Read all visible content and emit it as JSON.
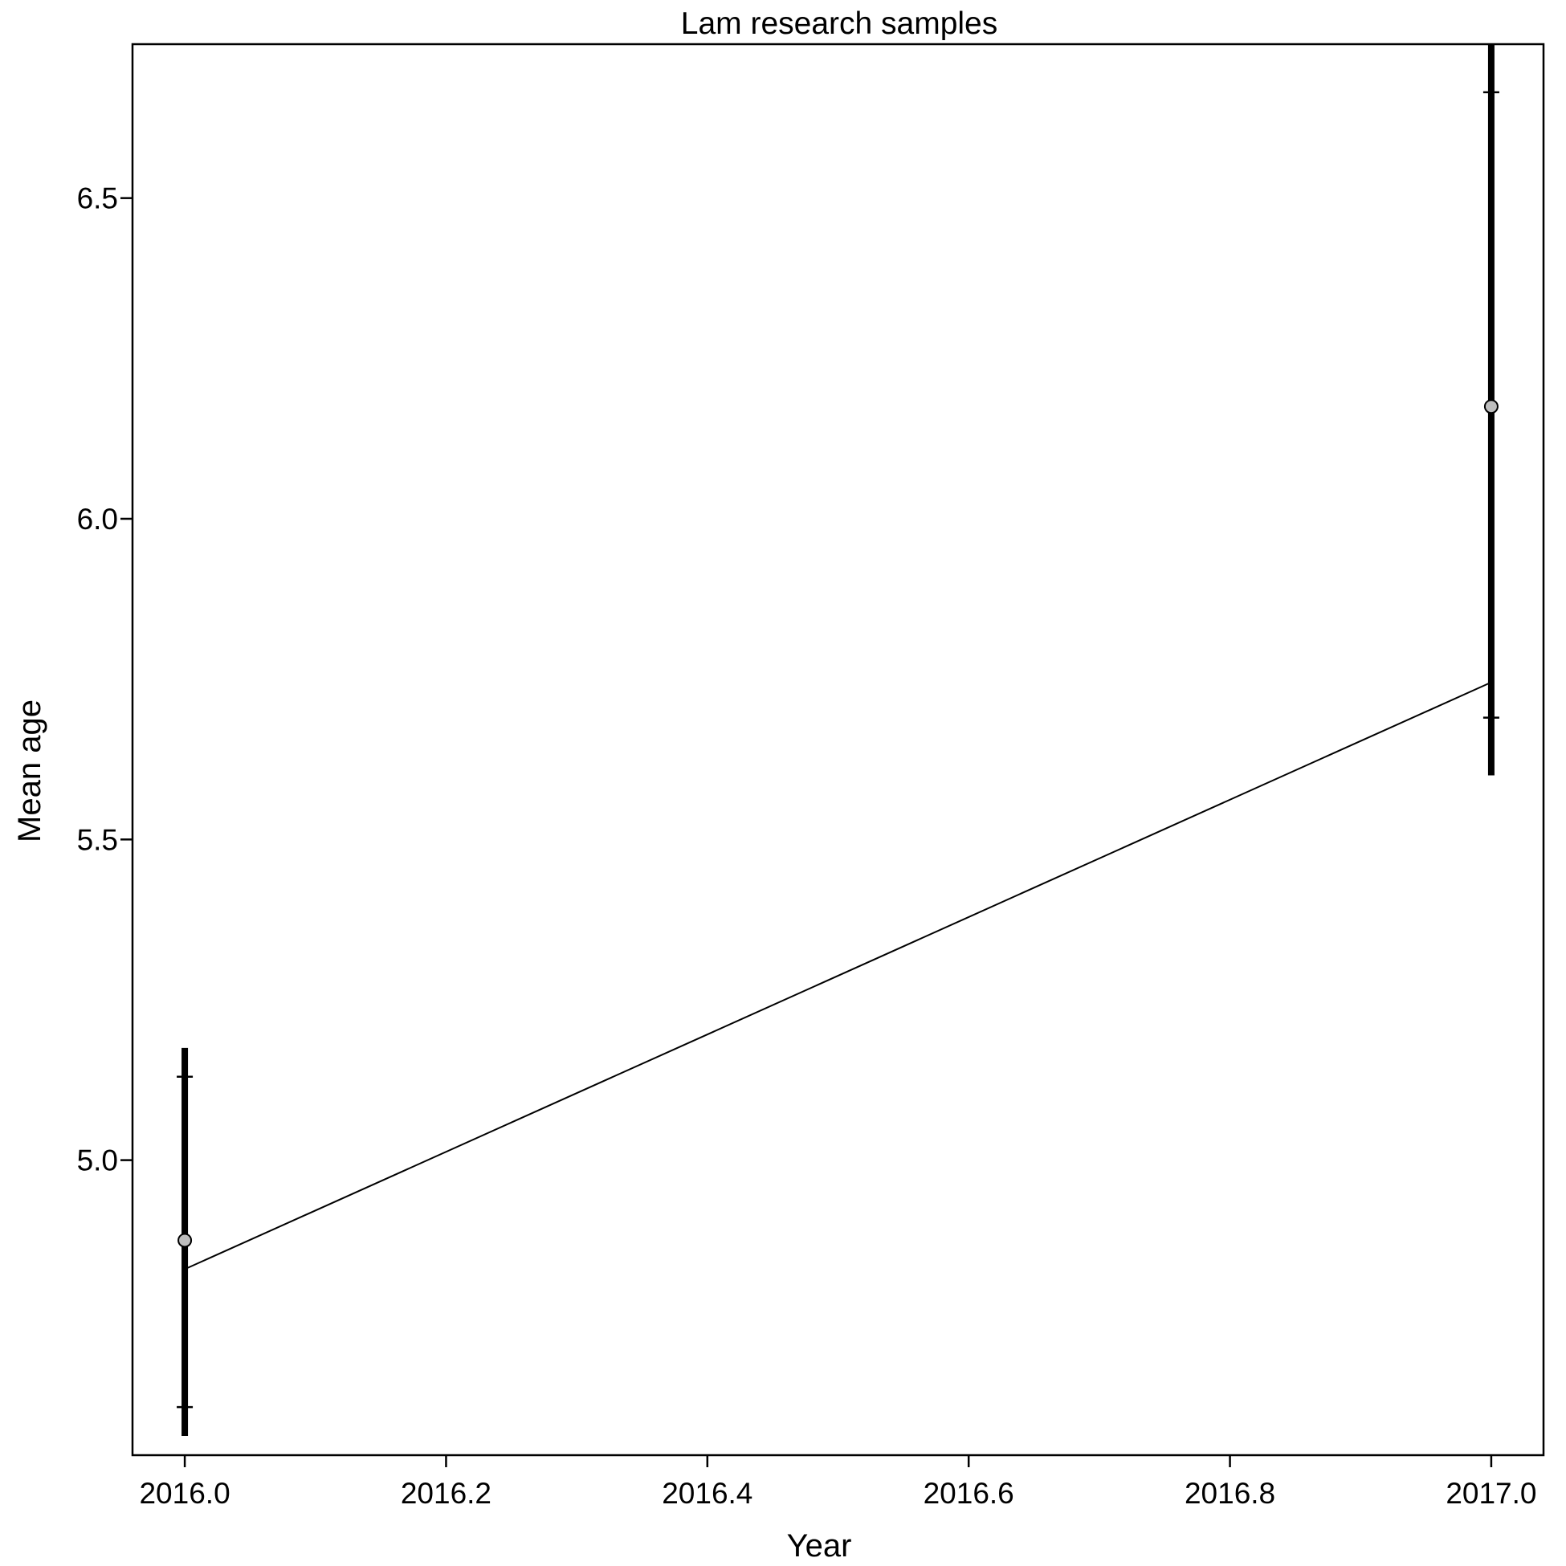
{
  "chart_data": {
    "type": "line",
    "title": "Lam research samples",
    "xlabel": "Year",
    "ylabel": "Mean age",
    "xlim": [
      1999.92,
      2017.04
    ],
    "ylim": [
      4.54,
      6.74
    ],
    "x_ticks": [
      "2016.0",
      "2016.2",
      "2016.4",
      "2016.6",
      "2016.8",
      "2017.0"
    ],
    "x_tick_values": [
      2016.0,
      2016.2,
      2016.4,
      2016.6,
      2016.8,
      2017.0
    ],
    "y_ticks": [
      "5.0",
      "5.5",
      "6.0",
      "6.5"
    ],
    "y_tick_values": [
      5.0,
      5.5,
      6.0,
      6.5
    ],
    "grid": false,
    "legend": "none",
    "observed": {
      "x": [
        2016.0,
        2017.0
      ],
      "y": [
        4.875,
        6.175
      ],
      "ci_inner": [
        [
          4.615,
          5.13
        ],
        [
          5.69,
          6.665
        ]
      ],
      "ci_outer": [
        [
          4.57,
          5.175
        ],
        [
          5.6,
          6.74
        ]
      ],
      "point_color": "#bebebe"
    },
    "fitted": {
      "x": [
        2016.0,
        2017.0
      ],
      "y": [
        4.83,
        5.745
      ]
    }
  }
}
